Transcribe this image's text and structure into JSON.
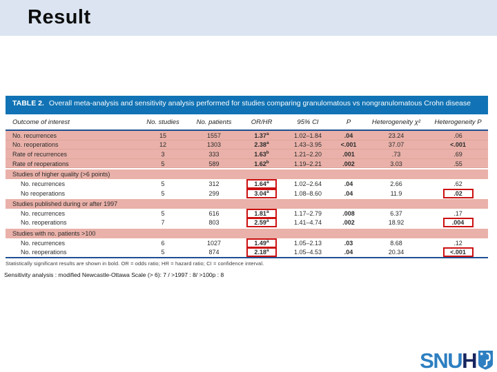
{
  "slide": {
    "title": "Result"
  },
  "table": {
    "title_label": "TABLE 2.",
    "title_text": "Overall meta-analysis and sensitivity analysis performed for studies comparing granulomatous vs nongranulomatous Crohn disease",
    "columns": [
      "Outcome of interest",
      "No. studies",
      "No. patients",
      "OR/HR",
      "95% CI",
      "P",
      "Heterogeneity χ²",
      "Heterogeneity P"
    ],
    "rows": [
      {
        "type": "data",
        "shaded": true,
        "indent": 1,
        "label": "No. recurrences",
        "studies": "15",
        "patients": "1557",
        "or": "1.37",
        "or_sup": "a",
        "or_box": false,
        "ci": "1.02–1.84",
        "p": ".04",
        "chi": "23.24",
        "het_p": ".06",
        "het_p_bold": false,
        "het_p_box": false
      },
      {
        "type": "data",
        "shaded": true,
        "indent": 1,
        "label": "No. reoperations",
        "studies": "12",
        "patients": "1303",
        "or": "2.38",
        "or_sup": "a",
        "or_box": false,
        "ci": "1.43–3.95",
        "p": "<.001",
        "chi": "37.07",
        "het_p": "<.001",
        "het_p_bold": true,
        "het_p_box": false
      },
      {
        "type": "data",
        "shaded": true,
        "indent": 1,
        "label": "Rate of recurrences",
        "studies": "3",
        "patients": "333",
        "or": "1.63",
        "or_sup": "b",
        "or_box": false,
        "ci": "1.21–2.20",
        "p": ".001",
        "chi": ".73",
        "het_p": ".69",
        "het_p_bold": false,
        "het_p_box": false
      },
      {
        "type": "data",
        "shaded": true,
        "indent": 1,
        "label": "Rate of reoperations",
        "studies": "5",
        "patients": "589",
        "or": "1.62",
        "or_sup": "b",
        "or_box": false,
        "ci": "1.19–2.21",
        "p": ".002",
        "chi": "3.03",
        "het_p": ".55",
        "het_p_bold": false,
        "het_p_box": false
      },
      {
        "type": "section",
        "label": "Studies of higher quality (>6 points)"
      },
      {
        "type": "data",
        "shaded": false,
        "indent": 2,
        "label": "No. recurrences",
        "studies": "5",
        "patients": "312",
        "or": "1.64",
        "or_sup": "a",
        "or_box": true,
        "ci": "1.02–2.64",
        "p": ".04",
        "chi": "2.66",
        "het_p": ".62",
        "het_p_bold": false,
        "het_p_box": false
      },
      {
        "type": "data",
        "shaded": false,
        "indent": 2,
        "label": "No reoperations",
        "studies": "5",
        "patients": "299",
        "or": "3.04",
        "or_sup": "a",
        "or_box": true,
        "ci": "1.08–8.60",
        "p": ".04",
        "chi": "11.9",
        "het_p": ".02",
        "het_p_bold": true,
        "het_p_box": true
      },
      {
        "type": "section",
        "label": "Studies published during or after 1997"
      },
      {
        "type": "data",
        "shaded": false,
        "indent": 2,
        "label": "No. recurrences",
        "studies": "5",
        "patients": "616",
        "or": "1.81",
        "or_sup": "a",
        "or_box": true,
        "ci": "1.17–2.79",
        "p": ".008",
        "chi": "6.37",
        "het_p": ".17",
        "het_p_bold": false,
        "het_p_box": false
      },
      {
        "type": "data",
        "shaded": false,
        "indent": 2,
        "label": "No. reoperations",
        "studies": "7",
        "patients": "803",
        "or": "2.59",
        "or_sup": "a",
        "or_box": true,
        "ci": "1.41–4.74",
        "p": ".002",
        "chi": "18.92",
        "het_p": ".004",
        "het_p_bold": true,
        "het_p_box": true
      },
      {
        "type": "section",
        "label": "Studies with no. patients >100"
      },
      {
        "type": "data",
        "shaded": false,
        "indent": 2,
        "label": "No. recurrences",
        "studies": "6",
        "patients": "1027",
        "or": "1.49",
        "or_sup": "a",
        "or_box": true,
        "ci": "1.05–2.13",
        "p": ".03",
        "chi": "8.68",
        "het_p": ".12",
        "het_p_bold": false,
        "het_p_box": false
      },
      {
        "type": "data",
        "shaded": false,
        "indent": 2,
        "label": "No. reoperations",
        "studies": "5",
        "patients": "874",
        "or": "2.18",
        "or_sup": "a",
        "or_box": true,
        "ci": "1.05–4.53",
        "p": ".04",
        "chi": "20.34",
        "het_p": "<.001",
        "het_p_bold": true,
        "het_p_box": true
      }
    ],
    "footnote": "Statistically significant results are shown in bold. OR = odds ratio; HR = hazard ratio; CI = confidence interval."
  },
  "annotation": {
    "sensitivity_note": "Sensitivity analysis  : modified Newcastle-Ottawa Scale (> 6): 7  / >1997 : 8/ >100p : 8"
  },
  "logo": {
    "text_snu": "SNU",
    "text_h": "H"
  },
  "colors": {
    "header_band": "#dbe4f0",
    "table_header_blue": "#1173b5",
    "row_highlight_pink": "#e9b1a9",
    "annotation_red": "#cc1010",
    "rule_navy": "#1d4f8f",
    "logo_blue": "#2e7fc1",
    "logo_navy": "#17255f"
  }
}
